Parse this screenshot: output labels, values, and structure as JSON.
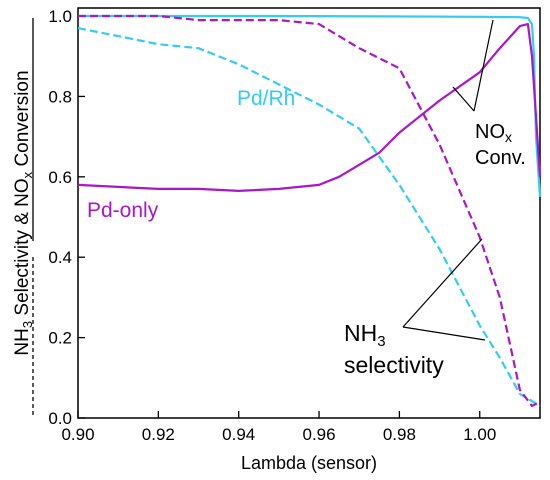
{
  "chart_data": {
    "type": "line",
    "xlabel": "Lambda (sensor)",
    "ylabel": {
      "nh3_base": "NH",
      "nh3_sub": "3",
      "middle": " Selectivity & ",
      "nox_base": "NO",
      "nox_sub": "x",
      "tail": " Conversion"
    },
    "xlim": [
      0.9,
      1.015
    ],
    "ylim": [
      0.0,
      1.02
    ],
    "x_ticks": [
      "0.90",
      "0.92",
      "0.94",
      "0.96",
      "0.98",
      "1.00"
    ],
    "y_ticks": [
      "0.0",
      "0.2",
      "0.4",
      "0.6",
      "0.8",
      "1.0"
    ],
    "grid": false,
    "series": [
      {
        "name": "Pd/Rh",
        "metric": "NOx conversion",
        "style": "solid",
        "color": "#33ccf2",
        "x": [
          0.9,
          0.95,
          1.0,
          1.01,
          1.012,
          1.013,
          1.0135,
          1.014,
          1.015
        ],
        "y": [
          1.0,
          1.0,
          0.998,
          0.997,
          0.995,
          0.98,
          0.9,
          0.7,
          0.55
        ]
      },
      {
        "name": "Pd/Rh",
        "metric": "NH3 selectivity",
        "style": "dashed",
        "color": "#33ccf2",
        "x": [
          0.9,
          0.91,
          0.92,
          0.93,
          0.94,
          0.95,
          0.96,
          0.97,
          0.98,
          0.99,
          1.0,
          1.005,
          1.01,
          1.015
        ],
        "y": [
          0.97,
          0.95,
          0.93,
          0.92,
          0.88,
          0.83,
          0.78,
          0.72,
          0.58,
          0.42,
          0.23,
          0.15,
          0.06,
          0.03
        ]
      },
      {
        "name": "Pd-only",
        "metric": "NOx conversion",
        "style": "solid",
        "color": "#a817c9",
        "x": [
          0.9,
          0.91,
          0.92,
          0.93,
          0.94,
          0.95,
          0.96,
          0.965,
          0.97,
          0.975,
          0.98,
          0.99,
          1.0,
          1.005,
          1.01,
          1.012,
          1.013,
          1.014,
          1.015
        ],
        "y": [
          0.58,
          0.575,
          0.57,
          0.57,
          0.565,
          0.57,
          0.58,
          0.6,
          0.63,
          0.66,
          0.71,
          0.79,
          0.86,
          0.92,
          0.975,
          0.98,
          0.9,
          0.75,
          0.6
        ]
      },
      {
        "name": "Pd-only",
        "metric": "NH3 selectivity",
        "style": "dashed",
        "color": "#a817c9",
        "x": [
          0.9,
          0.91,
          0.92,
          0.93,
          0.94,
          0.95,
          0.96,
          0.97,
          0.98,
          0.99,
          1.0,
          1.005,
          1.01,
          1.013,
          1.015
        ],
        "y": [
          1.0,
          1.0,
          1.0,
          0.99,
          0.99,
          0.99,
          0.98,
          0.92,
          0.87,
          0.68,
          0.45,
          0.3,
          0.07,
          0.03,
          0.04
        ]
      }
    ],
    "labels": {
      "pd_rh": "Pd/Rh",
      "pd_only": "Pd-only",
      "nox_conv_base": "NO",
      "nox_conv_sub": "x",
      "nox_conv_line2": "Conv.",
      "nh3_sel_base": "NH",
      "nh3_sel_sub": "3",
      "nh3_sel_line2": "selectivity"
    },
    "colors": {
      "pd_rh": "#33ccf2",
      "pd_only": "#a817c9",
      "annotation": "#000000"
    }
  }
}
